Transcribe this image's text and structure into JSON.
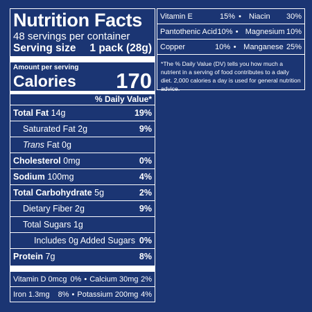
{
  "label": {
    "title": "Nutrition Facts",
    "servings": "48 servings per container",
    "serving_size_label": "Serving size",
    "serving_size_value": "1 pack (28g)",
    "amount_per_serving": "Amount per serving",
    "calories_label": "Calories",
    "calories_value": "170",
    "daily_value_header": "% Daily Value*",
    "nutrients": [
      {
        "name": "Total Fat",
        "amount": "14g",
        "dv": "19%"
      },
      {
        "name": "Saturated Fat",
        "amount": "2g",
        "dv": "9%"
      },
      {
        "name": "Trans",
        "amount": "Fat 0g",
        "dv": ""
      },
      {
        "name": "Cholesterol",
        "amount": "0mg",
        "dv": "0%"
      },
      {
        "name": "Sodium",
        "amount": "100mg",
        "dv": "4%"
      },
      {
        "name": "Total Carbohydrate",
        "amount": "5g",
        "dv": "2%"
      },
      {
        "name": "Dietary Fiber",
        "amount": "2g",
        "dv": "9%"
      },
      {
        "name": "Total Sugars",
        "amount": "1g",
        "dv": ""
      },
      {
        "name": "Includes 0g Added Sugars",
        "amount": "",
        "dv": "0%"
      },
      {
        "name": "Protein",
        "amount": "7g",
        "dv": "8%"
      }
    ],
    "vitamins": [
      {
        "left_name": "Vitamin D 0mcg",
        "left_dv": "0%",
        "right_name": "Calcium 30mg",
        "right_dv": "2%"
      },
      {
        "left_name": "Iron 1.3mg",
        "left_dv": "8%",
        "right_name": "Potassium 200mg",
        "right_dv": "4%"
      }
    ]
  },
  "supplement": {
    "rows": [
      {
        "n1": "Vitamin E",
        "v1": "15%",
        "n2": "Niacin",
        "v2": "30%"
      },
      {
        "n1": "Pantothenic Acid",
        "v1": "10%",
        "n2": "Magnesium",
        "v2": "10%"
      },
      {
        "n1": "Copper",
        "v1": "10%",
        "n2": "Manganese",
        "v2": "25%"
      }
    ],
    "separator": "•",
    "footnote": "*The % Daily Value (DV) tells you how much a nutrient in a serving of food contributes to a daily diet. 2,000 calories a day is used for general nutrition advice."
  },
  "colors": {
    "background": "#1b3573",
    "text": "#ffffff"
  }
}
